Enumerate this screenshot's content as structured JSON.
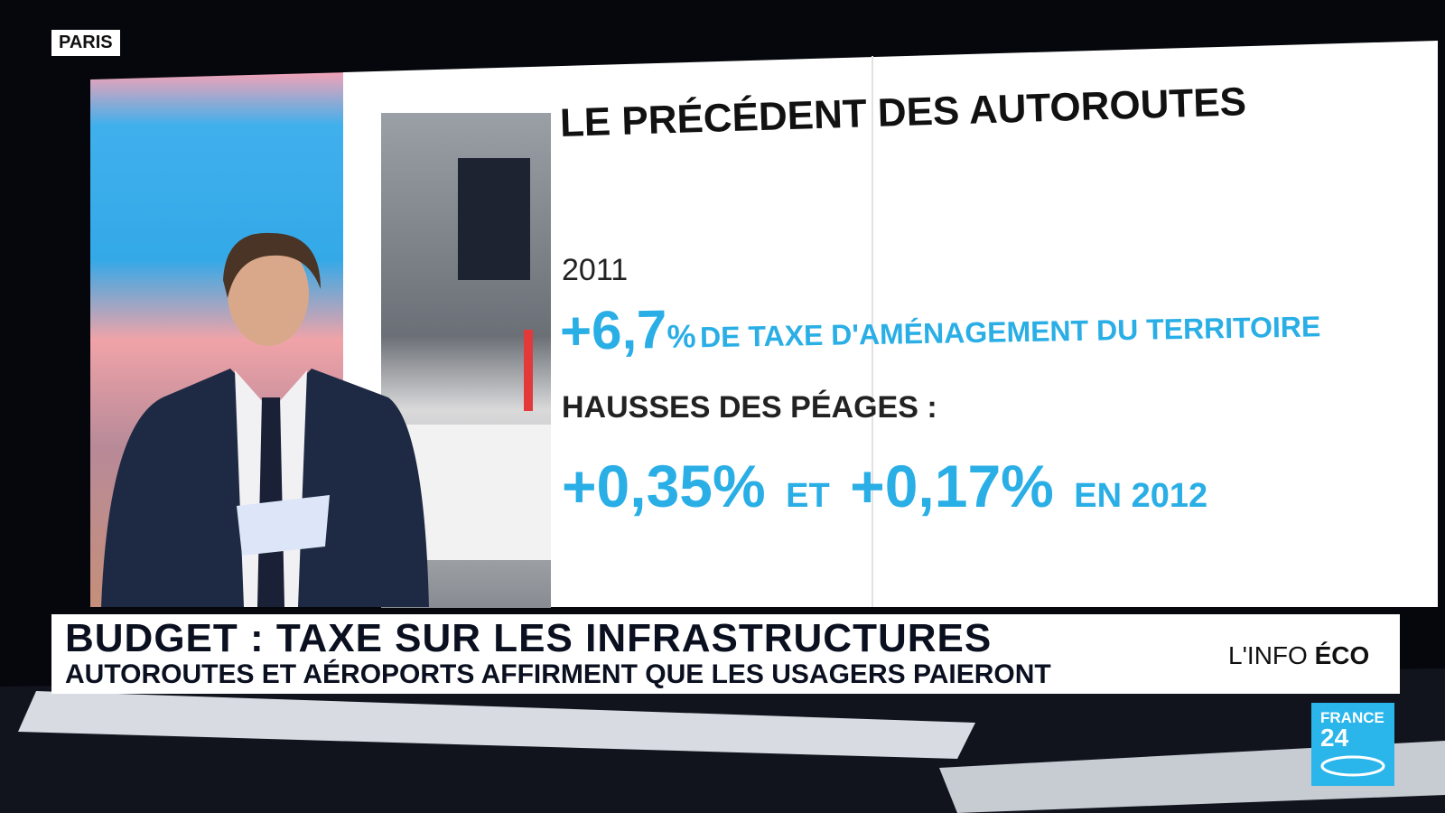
{
  "location": "PARIS",
  "screen": {
    "title": "LE PRÉCÉDENT DES AUTOROUTES",
    "year": "2011",
    "tax_value": "+6,7",
    "tax_unit": "%",
    "tax_text": "DE TAXE D'AMÉNAGEMENT DU TERRITOIRE",
    "tolls_heading": "HAUSSES DES PÉAGES :",
    "toll_first": "+0,35%",
    "toll_joiner": "ET",
    "toll_second": "+0,17%",
    "toll_year": "EN 2012"
  },
  "lower_third": {
    "headline": "BUDGET : TAXE SUR LES INFRASTRUCTURES",
    "subline": "AUTOROUTES ET AÉROPORTS AFFIRMENT QUE LES USAGERS PAIERONT",
    "segment_prefix": "L'INFO",
    "segment_bold": "ÉCO"
  },
  "logo": {
    "line1": "FRANCE",
    "line2": "24"
  }
}
